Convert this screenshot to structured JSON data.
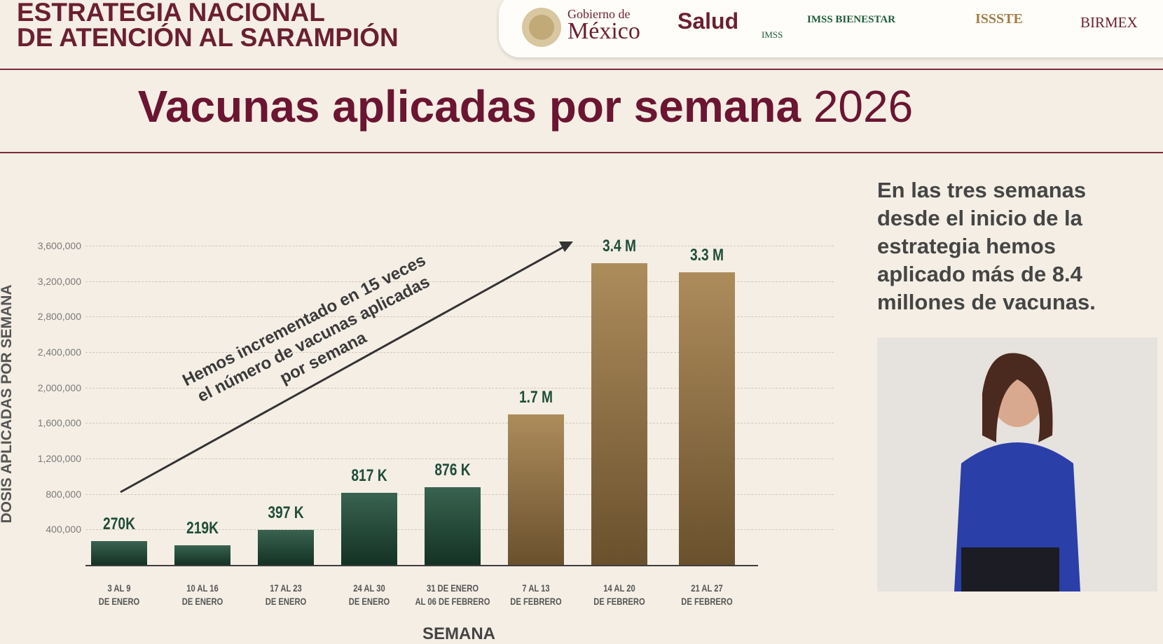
{
  "header": {
    "title": "ESTRATEGIA NACIONAL\nDE ATENCIÓN AL SARAMPIÓN",
    "logos": {
      "gobierno": "Gobierno de",
      "mexico": "México",
      "salud": "Salud",
      "imss": "IMSS",
      "imss_bienestar": "IMSS BIENESTAR",
      "issste": "ISSSTE",
      "birmex": "BIRMEX"
    }
  },
  "slide_title": "Vacunas aplicadas por semana",
  "slide_year": "2026",
  "side_text": "En las tres semanas\ndesde el inicio de la\nestrategia hemos\naplicado más de 8.4\nmillones de vacunas.",
  "chart_data": {
    "type": "bar",
    "y_label": "DOSIS APLICADAS POR SEMANA",
    "x_label": "SEMANA",
    "annotation": "Hemos incrementado en 15 veces\nel número de vacunas aplicadas\npor semana",
    "categories": [
      "3 AL 9\nDE ENERO",
      "10 AL 16\nDE ENERO",
      "17 AL 23\nDE ENERO",
      "24 AL 30\nDE ENERO",
      "31 DE ENERO\nAL 06 DE FEBRERO",
      "7 AL 13\nDE FEBRERO",
      "14 AL 20\nDE FEBRERO",
      "21 AL 27\nDE FEBRERO"
    ],
    "values": [
      270000,
      219000,
      397000,
      817000,
      876000,
      1700000,
      3400000,
      3300000
    ],
    "value_labels": [
      "270K",
      "219K",
      "397 K",
      "817 K",
      "876 K",
      "1.7 M",
      "3.4 M",
      "3.3 M"
    ],
    "colors": [
      "#1e4d38",
      "#1e4d38",
      "#1e4d38",
      "#1e4d38",
      "#1e4d38",
      "#a27c45",
      "#a27c45",
      "#a27c45"
    ],
    "ylim": [
      0,
      3600000
    ],
    "yticks": [
      {
        "value": 400000,
        "label": "400,000"
      },
      {
        "value": 800000,
        "label": "800,000"
      },
      {
        "value": 1200000,
        "label": "1,200,000"
      },
      {
        "value": 1600000,
        "label": "1,600,000"
      },
      {
        "value": 2000000,
        "label": "2,000,000"
      },
      {
        "value": 2400000,
        "label": "2,400,000"
      },
      {
        "value": 2800000,
        "label": "2,800,000"
      },
      {
        "value": 3200000,
        "label": "3,200,000"
      },
      {
        "value": 3600000,
        "label": "3,600,000"
      }
    ],
    "grid": true
  }
}
